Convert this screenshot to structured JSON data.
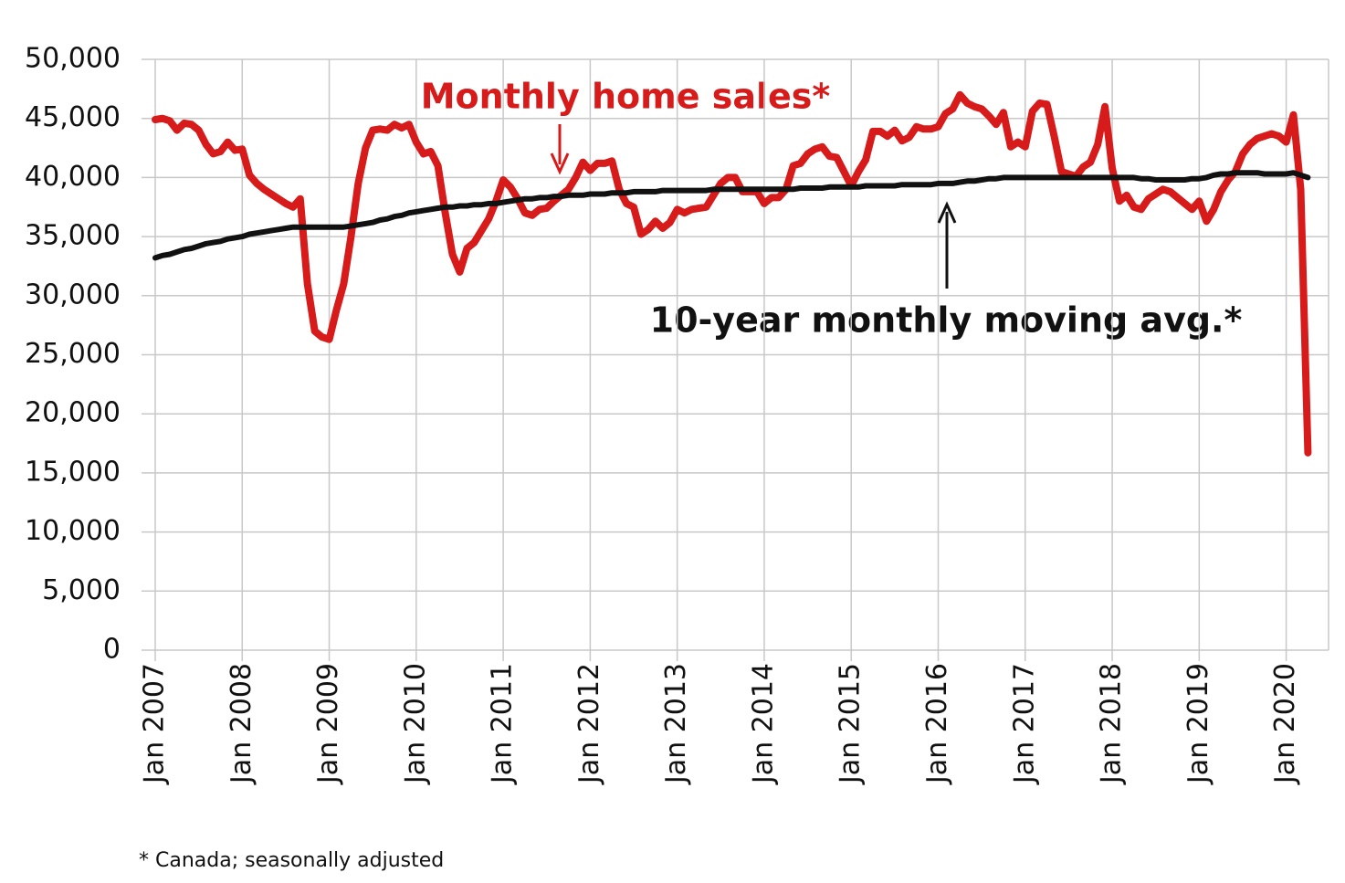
{
  "chart_data": {
    "type": "line",
    "categories": [
      "Jan 2007",
      null,
      null,
      null,
      null,
      null,
      null,
      null,
      null,
      null,
      null,
      null,
      "Jan 2008",
      null,
      null,
      null,
      null,
      null,
      null,
      null,
      null,
      null,
      null,
      null,
      "Jan 2009",
      null,
      null,
      null,
      null,
      null,
      null,
      null,
      null,
      null,
      null,
      null,
      "Jan 2010",
      null,
      null,
      null,
      null,
      null,
      null,
      null,
      null,
      null,
      null,
      null,
      "Jan 2011",
      null,
      null,
      null,
      null,
      null,
      null,
      null,
      null,
      null,
      null,
      null,
      "Jan 2012",
      null,
      null,
      null,
      null,
      null,
      null,
      null,
      null,
      null,
      null,
      null,
      "Jan 2013",
      null,
      null,
      null,
      null,
      null,
      null,
      null,
      null,
      null,
      null,
      null,
      "Jan 2014",
      null,
      null,
      null,
      null,
      null,
      null,
      null,
      null,
      null,
      null,
      null,
      "Jan 2015",
      null,
      null,
      null,
      null,
      null,
      null,
      null,
      null,
      null,
      null,
      null,
      "Jan 2016",
      null,
      null,
      null,
      null,
      null,
      null,
      null,
      null,
      null,
      null,
      null,
      "Jan 2017",
      null,
      null,
      null,
      null,
      null,
      null,
      null,
      null,
      null,
      null,
      null,
      "Jan 2018",
      null,
      null,
      null,
      null,
      null,
      null,
      null,
      null,
      null,
      null,
      null,
      "Jan 2019",
      null,
      null,
      null,
      null,
      null,
      null,
      null,
      null,
      null,
      null,
      null,
      "Jan 2020",
      null,
      null,
      null
    ],
    "series": [
      {
        "name": "Monthly home sales*",
        "color": "#d71a1a",
        "values": [
          44900,
          45000,
          44800,
          44000,
          44600,
          44500,
          44000,
          42800,
          42000,
          42200,
          43000,
          42300,
          42400,
          40200,
          39500,
          39000,
          38600,
          38200,
          37800,
          37500,
          38200,
          31000,
          27000,
          26500,
          26300,
          28800,
          31000,
          35000,
          39500,
          42500,
          44000,
          44100,
          44000,
          44500,
          44200,
          44500,
          43000,
          42000,
          42200,
          41000,
          37000,
          33500,
          32000,
          34000,
          34500,
          35500,
          36500,
          38000,
          39800,
          39200,
          38200,
          37000,
          36800,
          37300,
          37400,
          38000,
          38500,
          39000,
          40000,
          41300,
          40600,
          41200,
          41200,
          41400,
          39000,
          37800,
          37500,
          35200,
          35600,
          36300,
          35700,
          36200,
          37300,
          37000,
          37300,
          37400,
          37500,
          38500,
          39500,
          40000,
          40000,
          38800,
          38800,
          38800,
          37800,
          38300,
          38300,
          39000,
          41000,
          41200,
          42000,
          42400,
          42600,
          41800,
          41700,
          40500,
          39300,
          40500,
          41500,
          43900,
          43900,
          43500,
          44000,
          43100,
          43400,
          44300,
          44100,
          44100,
          44300,
          45400,
          45800,
          47000,
          46300,
          46000,
          45800,
          45200,
          44500,
          45500,
          42600,
          43000,
          42600,
          45600,
          46300,
          46200,
          43500,
          40500,
          40300,
          40100,
          40900,
          41300,
          42800,
          46000,
          40800,
          38000,
          38500,
          37500,
          37300,
          38200,
          38600,
          39000,
          38800,
          38300,
          37800,
          37300,
          38000,
          36300,
          37300,
          38800,
          39800,
          40500,
          42000,
          42800,
          43300,
          43500,
          43700,
          43500,
          43000,
          45300,
          39000,
          16700
        ]
      },
      {
        "name": "10-year monthly moving avg.*",
        "color": "#111111",
        "values": [
          33200,
          33400,
          33500,
          33700,
          33900,
          34000,
          34200,
          34400,
          34500,
          34600,
          34800,
          34900,
          35000,
          35200,
          35300,
          35400,
          35500,
          35600,
          35700,
          35800,
          35800,
          35800,
          35800,
          35800,
          35800,
          35800,
          35800,
          35900,
          36000,
          36100,
          36200,
          36400,
          36500,
          36700,
          36800,
          37000,
          37100,
          37200,
          37300,
          37400,
          37500,
          37500,
          37600,
          37600,
          37700,
          37700,
          37800,
          37800,
          37900,
          38000,
          38100,
          38200,
          38200,
          38300,
          38300,
          38400,
          38400,
          38500,
          38500,
          38500,
          38600,
          38600,
          38600,
          38700,
          38700,
          38700,
          38800,
          38800,
          38800,
          38800,
          38900,
          38900,
          38900,
          38900,
          38900,
          38900,
          38900,
          39000,
          39000,
          39000,
          39000,
          39000,
          39000,
          39000,
          39000,
          39000,
          39000,
          39000,
          39000,
          39100,
          39100,
          39100,
          39100,
          39200,
          39200,
          39200,
          39200,
          39200,
          39300,
          39300,
          39300,
          39300,
          39300,
          39400,
          39400,
          39400,
          39400,
          39400,
          39500,
          39500,
          39500,
          39600,
          39700,
          39700,
          39800,
          39900,
          39900,
          40000,
          40000,
          40000,
          40000,
          40000,
          40000,
          40000,
          40000,
          40000,
          40000,
          40000,
          40000,
          40000,
          40000,
          40000,
          40000,
          40000,
          40000,
          40000,
          39900,
          39900,
          39800,
          39800,
          39800,
          39800,
          39800,
          39900,
          39900,
          40000,
          40200,
          40300,
          40300,
          40400,
          40400,
          40400,
          40400,
          40300,
          40300,
          40300,
          40300,
          40400,
          40200,
          40000
        ]
      }
    ],
    "ylim": [
      0,
      50000
    ],
    "yticks": [
      {
        "value": 0,
        "label": "0"
      },
      {
        "value": 5000,
        "label": "5,000"
      },
      {
        "value": 10000,
        "label": "10,000"
      },
      {
        "value": 15000,
        "label": "15,000"
      },
      {
        "value": 20000,
        "label": "20,000"
      },
      {
        "value": 25000,
        "label": "25,000"
      },
      {
        "value": 30000,
        "label": "30,000"
      },
      {
        "value": 35000,
        "label": "35,000"
      },
      {
        "value": 40000,
        "label": "40,000"
      },
      {
        "value": 45000,
        "label": "45,000"
      },
      {
        "value": 50000,
        "label": "50,000"
      }
    ],
    "grid": true,
    "footnote": "* Canada; seasonally adjusted"
  }
}
